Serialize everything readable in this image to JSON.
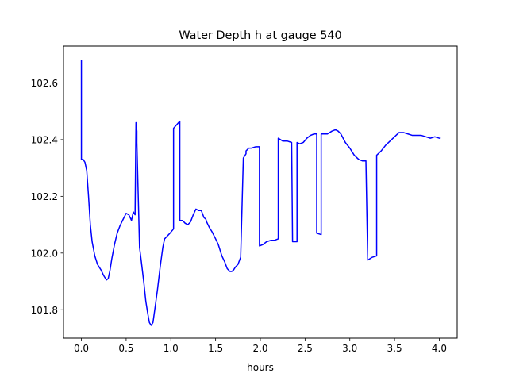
{
  "chart_data": {
    "type": "line",
    "title": "Water Depth h at gauge 540",
    "xlabel": "hours",
    "ylabel": "",
    "xlim": [
      -0.2,
      4.2
    ],
    "ylim": [
      101.7,
      102.73
    ],
    "xticks": [
      0.0,
      0.5,
      1.0,
      1.5,
      2.0,
      2.5,
      3.0,
      3.5,
      4.0
    ],
    "xtick_labels": [
      "0.0",
      "0.5",
      "1.0",
      "1.5",
      "2.0",
      "2.5",
      "3.0",
      "3.5",
      "4.0"
    ],
    "yticks": [
      101.8,
      102.0,
      102.2,
      102.4,
      102.6
    ],
    "ytick_labels": [
      "101.8",
      "102.0",
      "102.2",
      "102.4",
      "102.6"
    ],
    "grid": false,
    "series": [
      {
        "color": "#0000ff",
        "x": [
          0.0,
          0.0,
          0.02,
          0.04,
          0.06,
          0.08,
          0.1,
          0.12,
          0.15,
          0.18,
          0.2,
          0.22,
          0.25,
          0.28,
          0.3,
          0.32,
          0.34,
          0.37,
          0.4,
          0.43,
          0.46,
          0.5,
          0.53,
          0.56,
          0.58,
          0.6,
          0.61,
          0.62,
          0.62,
          0.65,
          0.65,
          0.67,
          0.7,
          0.72,
          0.74,
          0.76,
          0.78,
          0.8,
          0.82,
          0.85,
          0.88,
          0.91,
          0.93,
          0.96,
          0.99,
          1.03,
          1.03,
          1.1,
          1.1,
          1.13,
          1.16,
          1.19,
          1.22,
          1.25,
          1.28,
          1.31,
          1.34,
          1.37,
          1.39,
          1.4,
          1.43,
          1.46,
          1.5,
          1.53,
          1.57,
          1.6,
          1.63,
          1.66,
          1.68,
          1.7,
          1.72,
          1.75,
          1.78,
          1.81,
          1.84,
          1.84,
          1.87,
          1.9,
          1.95,
          1.99,
          1.99,
          2.03,
          2.07,
          2.12,
          2.16,
          2.2,
          2.2,
          2.25,
          2.3,
          2.35,
          2.36,
          2.36,
          2.41,
          2.41,
          2.44,
          2.48,
          2.52,
          2.56,
          2.6,
          2.63,
          2.63,
          2.68,
          2.68,
          2.75,
          2.8,
          2.84,
          2.87,
          2.9,
          2.95,
          3.0,
          3.05,
          3.1,
          3.14,
          3.18,
          3.2,
          3.2,
          3.25,
          3.3,
          3.3,
          3.35,
          3.4,
          3.45,
          3.5,
          3.55,
          3.6,
          3.65,
          3.7,
          3.8,
          3.85,
          3.9,
          3.95,
          4.0
        ],
        "y": [
          102.68,
          102.33,
          102.33,
          102.32,
          102.29,
          102.2,
          102.1,
          102.04,
          101.99,
          101.96,
          101.95,
          101.94,
          101.92,
          101.905,
          101.91,
          101.94,
          101.98,
          102.03,
          102.07,
          102.095,
          102.115,
          102.14,
          102.135,
          102.115,
          102.145,
          102.135,
          102.46,
          102.43,
          102.39,
          102.02,
          102.02,
          101.97,
          101.89,
          101.83,
          101.79,
          101.755,
          101.745,
          101.755,
          101.8,
          101.87,
          101.95,
          102.02,
          102.05,
          102.06,
          102.07,
          102.085,
          102.44,
          102.465,
          102.115,
          102.115,
          102.105,
          102.1,
          102.11,
          102.135,
          102.155,
          102.15,
          102.15,
          102.125,
          102.12,
          102.11,
          102.09,
          102.075,
          102.05,
          102.03,
          101.99,
          101.97,
          101.945,
          101.935,
          101.935,
          101.94,
          101.95,
          101.96,
          101.985,
          102.335,
          102.35,
          102.36,
          102.37,
          102.37,
          102.375,
          102.375,
          102.025,
          102.03,
          102.04,
          102.045,
          102.045,
          102.05,
          102.405,
          102.395,
          102.395,
          102.39,
          102.04,
          102.04,
          102.04,
          102.39,
          102.385,
          102.39,
          102.405,
          102.415,
          102.42,
          102.42,
          102.07,
          102.065,
          102.42,
          102.42,
          102.43,
          102.435,
          102.43,
          102.42,
          102.39,
          102.37,
          102.345,
          102.33,
          102.325,
          102.325,
          101.98,
          101.975,
          101.985,
          101.99,
          102.345,
          102.36,
          102.38,
          102.395,
          102.41,
          102.425,
          102.425,
          102.42,
          102.415,
          102.415,
          102.41,
          102.405,
          102.41,
          102.405
        ]
      }
    ]
  }
}
